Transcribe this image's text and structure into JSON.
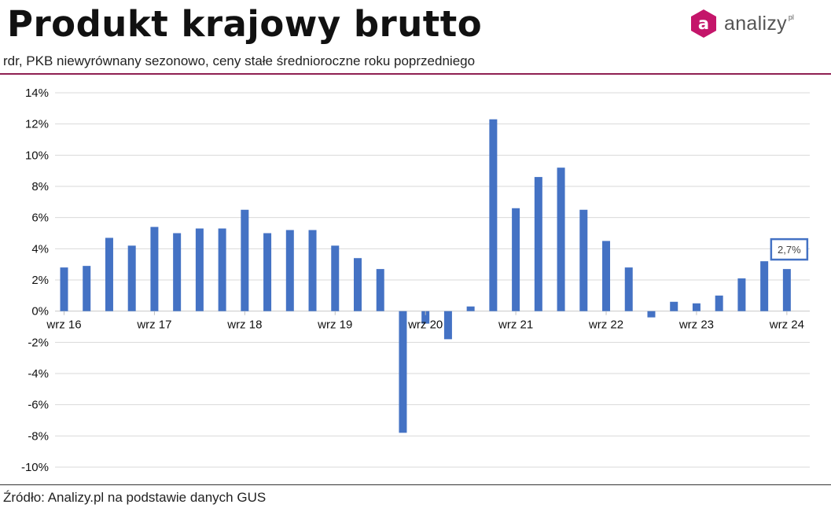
{
  "header": {
    "title": "Produkt krajowy brutto",
    "subtitle": "rdr, PKB niewyrównany sezonowo, ceny stałe średnioroczne roku poprzedniego"
  },
  "logo": {
    "letter": "a",
    "text": "analizy",
    "sup": "pl",
    "color": "#c4156a"
  },
  "footer": {
    "source": "Źródło: Analizy.pl na podstawie danych GUS"
  },
  "colors": {
    "bar": "#4472c4",
    "accent": "#8f2052"
  },
  "chart_data": {
    "type": "bar",
    "title": "Produkt krajowy brutto",
    "xlabel": "",
    "ylabel": "",
    "ylim": [
      -10,
      14
    ],
    "yticks": [
      14,
      12,
      10,
      8,
      6,
      4,
      2,
      0,
      -2,
      -4,
      -6,
      -8,
      -10
    ],
    "ytick_labels": [
      "14%",
      "12%",
      "10%",
      "8%",
      "6%",
      "4%",
      "2%",
      "0%",
      "-2%",
      "-4%",
      "-6%",
      "-8%",
      "-10%"
    ],
    "grid": true,
    "x_tick_labels": [
      {
        "index": 0,
        "label": "wrz 16"
      },
      {
        "index": 4,
        "label": "wrz 17"
      },
      {
        "index": 8,
        "label": "wrz 18"
      },
      {
        "index": 12,
        "label": "wrz 19"
      },
      {
        "index": 16,
        "label": "wrz 20"
      },
      {
        "index": 20,
        "label": "wrz 21"
      },
      {
        "index": 24,
        "label": "wrz 22"
      },
      {
        "index": 28,
        "label": "wrz 23"
      },
      {
        "index": 32,
        "label": "wrz 24"
      }
    ],
    "values": [
      2.8,
      2.9,
      4.7,
      4.2,
      5.4,
      5.0,
      5.3,
      5.3,
      6.5,
      5.0,
      5.2,
      5.2,
      4.2,
      3.4,
      2.7,
      -7.8,
      -0.8,
      -1.8,
      0.3,
      12.3,
      6.6,
      8.6,
      9.2,
      6.5,
      4.5,
      2.8,
      -0.4,
      0.6,
      0.5,
      1.0,
      2.1,
      3.2,
      2.7
    ],
    "annotation": {
      "index": 32,
      "text": "2,7%"
    }
  }
}
